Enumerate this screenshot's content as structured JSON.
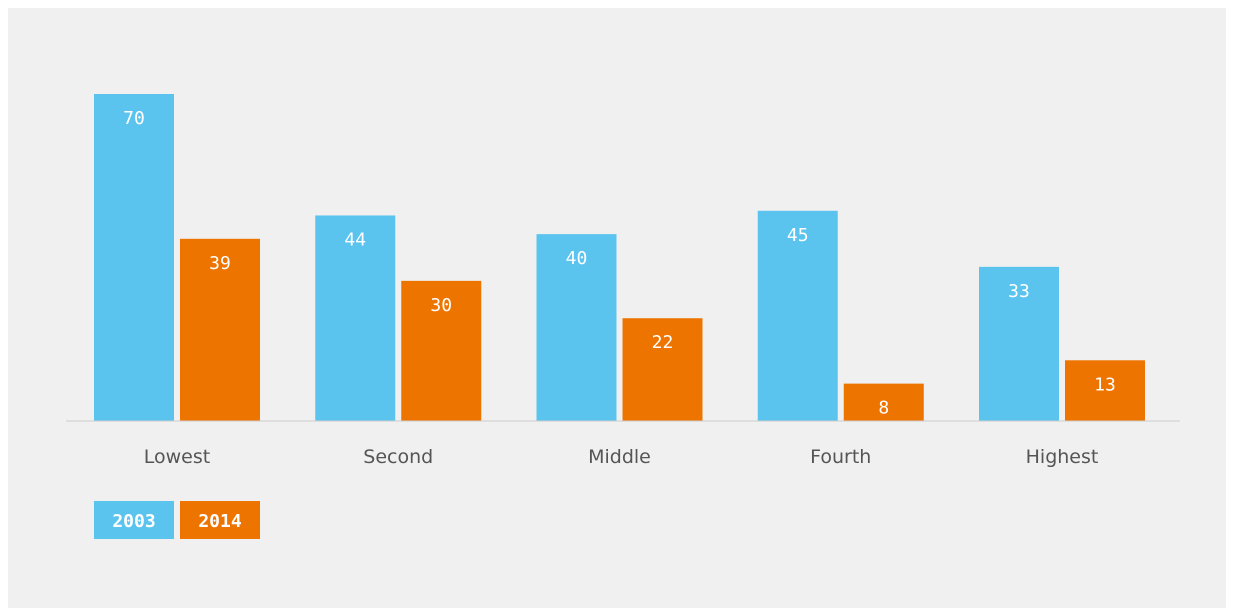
{
  "chart_data": {
    "type": "bar",
    "categories": [
      "Lowest",
      "Second",
      "Middle",
      "Fourth",
      "Highest"
    ],
    "series": [
      {
        "name": "2003",
        "values": [
          70,
          44,
          40,
          45,
          33
        ],
        "color": "#5bc4ee"
      },
      {
        "name": "2014",
        "values": [
          39,
          30,
          22,
          8,
          13
        ],
        "color": "#ee7400"
      }
    ],
    "title": "",
    "xlabel": "",
    "ylabel": "",
    "ylim": [
      0,
      70
    ],
    "grid": false,
    "legend_position": "bottom-left",
    "colors": {
      "axis": "#cccccc",
      "background": "#f0f0f0",
      "category_label": "#555555",
      "value_label": "#ffffff"
    }
  }
}
